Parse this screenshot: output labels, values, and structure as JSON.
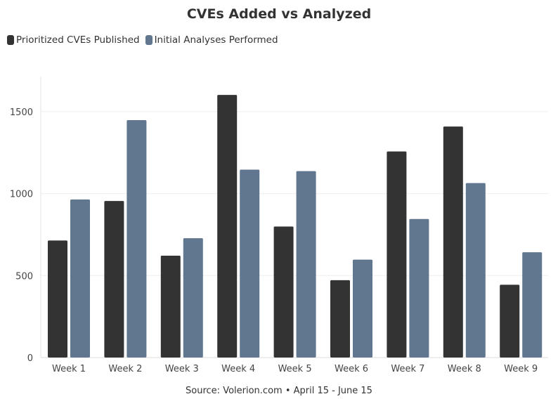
{
  "chart_data": {
    "type": "bar",
    "title": "CVEs Added vs Analyzed",
    "subtitle": "",
    "xlabel": "",
    "ylabel": "",
    "categories": [
      "Week 1",
      "Week 2",
      "Week 3",
      "Week 4",
      "Week 5",
      "Week 6",
      "Week 7",
      "Week 8",
      "Week 9"
    ],
    "series": [
      {
        "name": "Prioritized CVEs Published",
        "color": "#333333",
        "values": [
          714,
          955,
          621,
          1602,
          799,
          472,
          1257,
          1409,
          444
        ]
      },
      {
        "name": "Initial Analyses Performed",
        "color": "#60778f",
        "values": [
          964,
          1448,
          728,
          1146,
          1137,
          597,
          845,
          1064,
          642
        ]
      }
    ],
    "ylim": [
      0,
      1800
    ],
    "yticks": [
      0,
      500,
      1000,
      1500
    ],
    "grid": true,
    "legend_position": "top-left",
    "source": "Source: Volerion.com • April 15 - June 15"
  }
}
